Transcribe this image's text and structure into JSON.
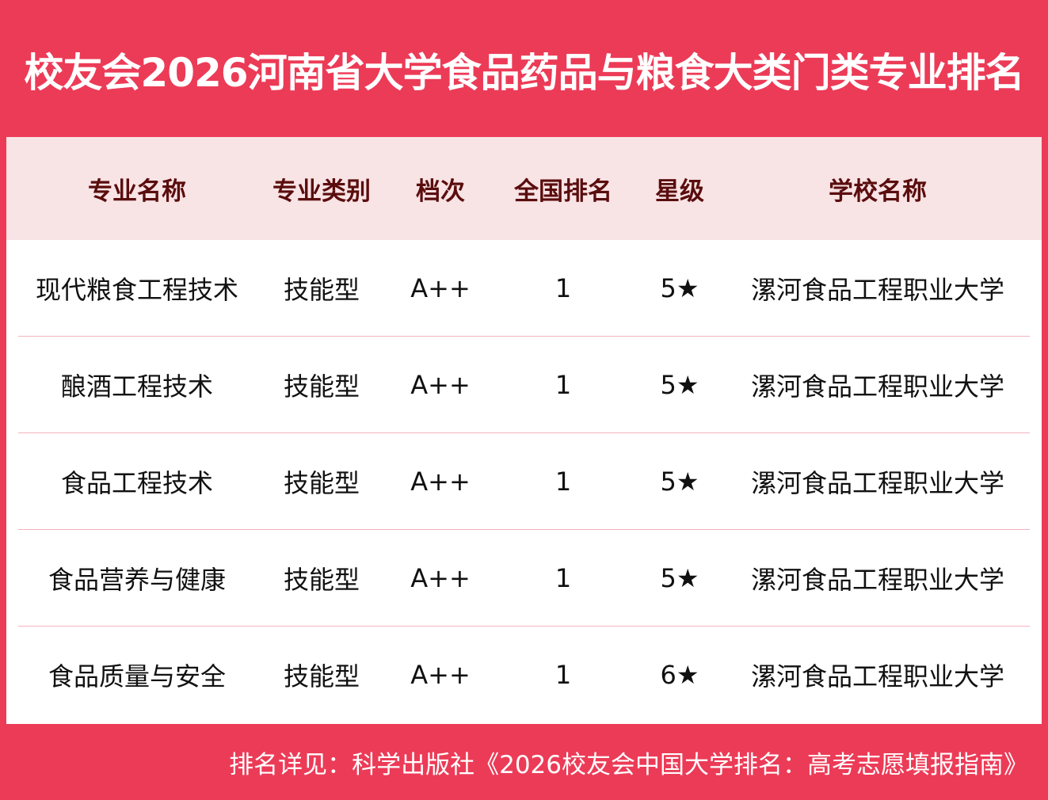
{
  "title": "校友会2026河南省大学食品药品与粮食大类门类专业排名",
  "colors": {
    "background": "#EC3B57",
    "header_bg": "#F8E3E5",
    "header_text": "#5A0D0D",
    "separator": "#F4B3BE"
  },
  "table": {
    "headers": [
      "专业名称",
      "专业类别",
      "档次",
      "全国排名",
      "星级",
      "学校名称"
    ],
    "rows": [
      [
        "现代粮食工程技术",
        "技能型",
        "A++",
        "1",
        "5★",
        "漯河食品工程职业大学"
      ],
      [
        "酿酒工程技术",
        "技能型",
        "A++",
        "1",
        "5★",
        "漯河食品工程职业大学"
      ],
      [
        "食品工程技术",
        "技能型",
        "A++",
        "1",
        "5★",
        "漯河食品工程职业大学"
      ],
      [
        "食品营养与健康",
        "技能型",
        "A++",
        "1",
        "5★",
        "漯河食品工程职业大学"
      ],
      [
        "食品质量与安全",
        "技能型",
        "A++",
        "1",
        "6★",
        "漯河食品工程职业大学"
      ]
    ]
  },
  "footer": "排名详见：科学出版社《2026校友会中国大学排名：高考志愿填报指南》"
}
